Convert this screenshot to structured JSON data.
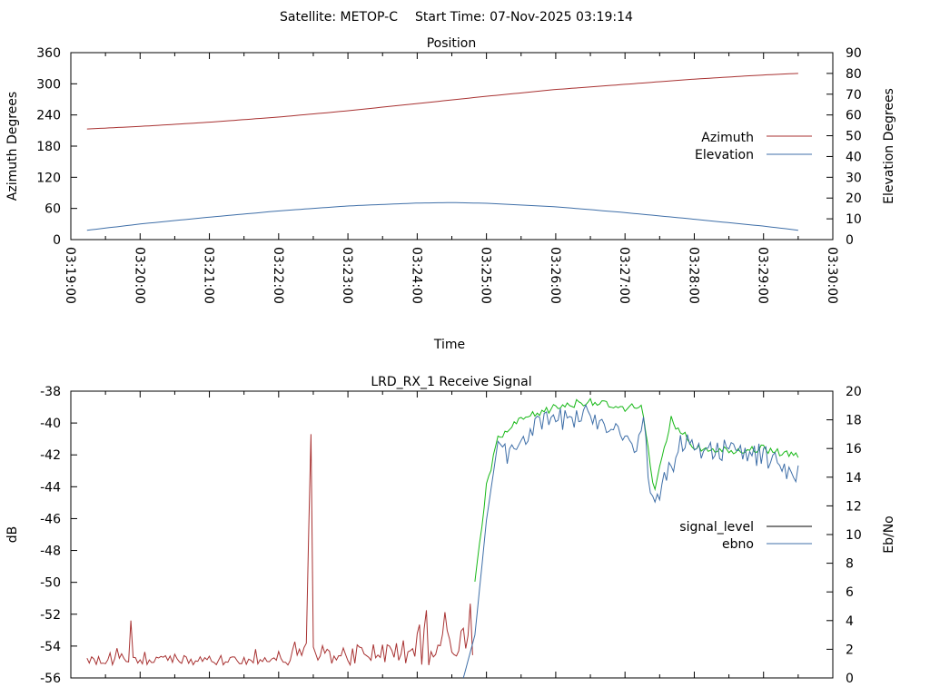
{
  "header": {
    "satellite_label": "Satellite: METOP-C",
    "start_time_label": "Start Time: 07-Nov-2025 03:19:14"
  },
  "colors": {
    "azimuth": "#a83232",
    "elevation": "#3f6fa8",
    "signal_level_legend": "#000000",
    "ebno": "#3f6fa8",
    "signal_red": "#a83232",
    "signal_green": "#17b817",
    "frame": "#000000"
  },
  "chart_data": [
    {
      "type": "line",
      "title": "Position",
      "xlabel": "Time",
      "ylabel": "Azimuth Degrees",
      "y2label": "Elevation Degrees",
      "xlim": [
        "03:19:00",
        "03:30:00"
      ],
      "ylim": [
        0,
        360
      ],
      "y2lim": [
        0,
        90
      ],
      "x_tick_labels": [
        "03:19:00",
        "03:20:00",
        "03:21:00",
        "03:22:00",
        "03:23:00",
        "03:24:00",
        "03:25:00",
        "03:26:00",
        "03:27:00",
        "03:28:00",
        "03:29:00",
        "03:30:00"
      ],
      "y_tick_labels": [
        "0",
        "60",
        "120",
        "180",
        "240",
        "300",
        "360"
      ],
      "y2_tick_labels": [
        "0",
        "10",
        "20",
        "30",
        "40",
        "50",
        "60",
        "70",
        "80",
        "90"
      ],
      "legend_position": "right",
      "legend": [
        "Azimuth",
        "Elevation"
      ],
      "series": [
        {
          "name": "Azimuth",
          "axis": "left",
          "x": [
            "03:19:14",
            "03:20:00",
            "03:21:00",
            "03:22:00",
            "03:23:00",
            "03:24:00",
            "03:25:00",
            "03:26:00",
            "03:27:00",
            "03:28:00",
            "03:29:00",
            "03:29:30"
          ],
          "values": [
            213,
            218,
            226,
            236,
            248,
            262,
            276,
            289,
            299,
            309,
            317,
            320
          ]
        },
        {
          "name": "Elevation",
          "axis": "right",
          "x": [
            "03:19:14",
            "03:20:00",
            "03:21:00",
            "03:22:00",
            "03:23:00",
            "03:24:00",
            "03:24:30",
            "03:25:00",
            "03:26:00",
            "03:27:00",
            "03:28:00",
            "03:29:00",
            "03:29:30"
          ],
          "values": [
            4.5,
            7.5,
            10.8,
            13.8,
            16.2,
            17.6,
            17.8,
            17.5,
            15.8,
            13.0,
            9.8,
            6.5,
            4.5
          ]
        }
      ]
    },
    {
      "type": "line",
      "title": "LRD_RX_1 Receive Signal",
      "ylabel": "dB",
      "y2label": "Eb/No",
      "xlim": [
        "03:19:00",
        "03:30:00"
      ],
      "ylim": [
        -56,
        -38
      ],
      "y2lim": [
        0,
        20
      ],
      "y_tick_labels": [
        "-56",
        "-54",
        "-52",
        "-50",
        "-48",
        "-46",
        "-44",
        "-42",
        "-40",
        "-38"
      ],
      "y2_tick_labels": [
        "0",
        "2",
        "4",
        "6",
        "8",
        "10",
        "12",
        "14",
        "16",
        "18",
        "20"
      ],
      "legend_position": "right",
      "legend": [
        "signal_level",
        "ebno"
      ],
      "series": [
        {
          "name": "signal_level",
          "axis": "left",
          "x": [
            "03:19:14",
            "03:20:00",
            "03:21:00",
            "03:22:00",
            "03:22:20",
            "03:22:30",
            "03:23:00",
            "03:24:00",
            "03:24:30",
            "03:24:50",
            "03:25:00",
            "03:25:10",
            "03:25:30",
            "03:26:00",
            "03:26:30",
            "03:27:00",
            "03:27:15",
            "03:27:25",
            "03:27:40",
            "03:28:00",
            "03:28:30",
            "03:29:00",
            "03:29:30"
          ],
          "values": [
            -54.8,
            -54.9,
            -54.7,
            -54.5,
            -54.2,
            -40.7,
            -54.0,
            -53.5,
            -53.0,
            -50.0,
            -44.0,
            -41.0,
            -39.8,
            -39.0,
            -38.6,
            -39.2,
            -38.8,
            -44.5,
            -39.8,
            -41.5,
            -41.7,
            -41.6,
            -42.1
          ]
        },
        {
          "name": "ebno",
          "axis": "right",
          "x": [
            "03:24:40",
            "03:24:50",
            "03:25:00",
            "03:25:10",
            "03:25:20",
            "03:25:40",
            "03:26:00",
            "03:26:30",
            "03:27:00",
            "03:27:10",
            "03:27:15",
            "03:27:20",
            "03:27:25",
            "03:27:35",
            "03:27:50",
            "03:28:10",
            "03:28:30",
            "03:29:00",
            "03:29:30"
          ],
          "values": [
            0,
            3,
            11,
            16.5,
            15.5,
            17.5,
            18,
            18.3,
            17.2,
            15.5,
            18.5,
            14.5,
            11.5,
            14,
            16.5,
            16,
            15.8,
            15.5,
            14.2
          ]
        }
      ]
    }
  ]
}
